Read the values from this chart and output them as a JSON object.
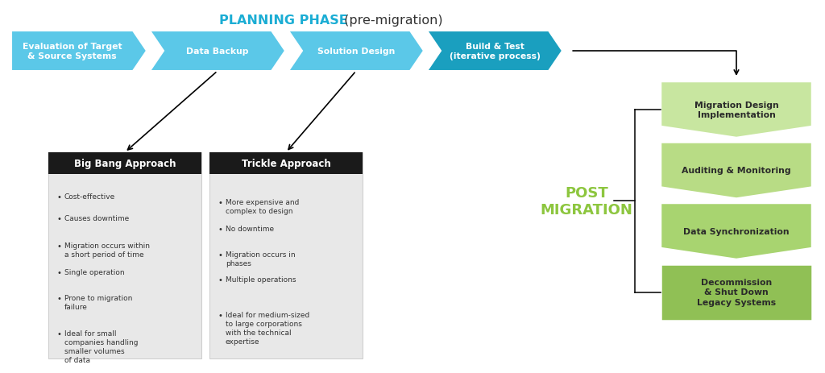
{
  "title_bold": "PLANNING PHASE",
  "title_regular": " (pre-migration)",
  "arrow_steps": [
    "Evaluation of Target\n& Source Systems",
    "Data Backup",
    "Solution Design",
    "Build & Test\n(iterative process)"
  ],
  "arrow_color_light": "#5BC8E8",
  "arrow_color_dark": "#1A9FBF",
  "big_bang_title": "Big Bang Approach",
  "big_bang_bullets": [
    "Cost-effective",
    "Causes downtime",
    "Migration occurs within\na short period of time",
    "Single operation",
    "Prone to migration\nfailure",
    "Ideal for small\ncompanies handling\nsmaller volumes\nof data"
  ],
  "trickle_title": "Trickle Approach",
  "trickle_bullets": [
    "More expensive and\ncomplex to design",
    "No downtime",
    "Migration occurs in\nphases",
    "Multiple operations",
    "Ideal for medium-sized\nto large corporations\nwith the technical\nexpertise"
  ],
  "post_migration_label": "POST\nMIGRATION",
  "post_migration_color": "#8DC63F",
  "post_steps": [
    "Migration Design\nImplementation",
    "Auditing & Monitoring",
    "Data Synchronization",
    "Decommission\n& Shut Down\nLegacy Systems"
  ],
  "post_step_colors": [
    "#C8E6A0",
    "#B8DC85",
    "#A8D470",
    "#90C055"
  ],
  "bg_color": "#FFFFFF",
  "box_bg": "#E8E8E8",
  "header_bg": "#1A1A1A"
}
